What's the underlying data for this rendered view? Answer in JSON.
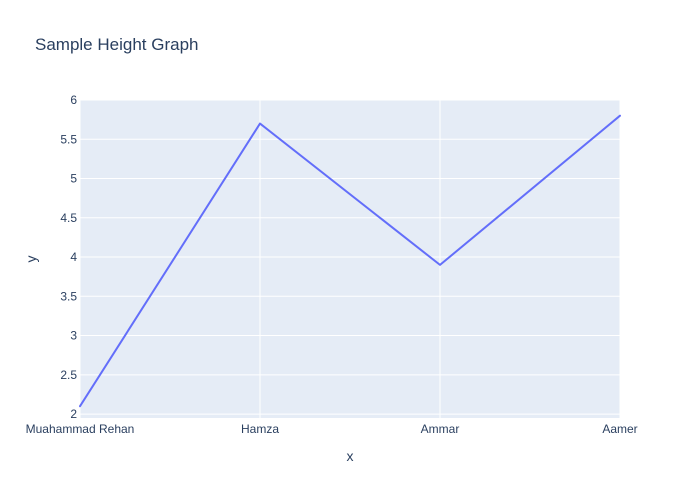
{
  "chart_data": {
    "type": "line",
    "title": "Sample Height Graph",
    "xlabel": "x",
    "ylabel": "y",
    "categories": [
      "Muahammad Rehan",
      "Hamza",
      "Ammar",
      "Aamer"
    ],
    "series": [
      {
        "values": [
          2.1,
          5.7,
          3.9,
          5.8
        ],
        "color": "#636efa"
      }
    ],
    "ylim": [
      1.95,
      6.0
    ],
    "yticks": [
      2,
      2.5,
      3,
      3.5,
      4,
      4.5,
      5,
      5.5,
      6
    ],
    "ytick_labels": [
      "2",
      "2.5",
      "3",
      "3.5",
      "4",
      "4.5",
      "5",
      "5.5",
      "6"
    ],
    "grid": true,
    "legend": "none",
    "colors": {
      "plot_background": "#e5ecf6",
      "grid": "#ffffff",
      "text": "#2a3f5f"
    }
  }
}
